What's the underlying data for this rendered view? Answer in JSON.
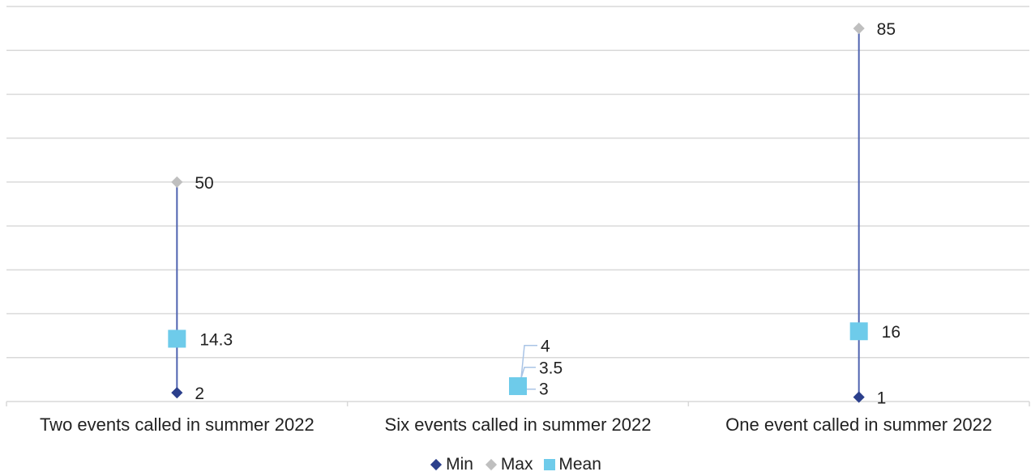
{
  "chart_data": {
    "type": "scatter",
    "categories": [
      "Two events called in summer 2022",
      "Six events called in summer 2022",
      "One event called in summer 2022"
    ],
    "series": [
      {
        "name": "Min",
        "values": [
          2,
          3,
          1
        ]
      },
      {
        "name": "Max",
        "values": [
          50,
          4,
          85
        ]
      },
      {
        "name": "Mean",
        "values": [
          14.3,
          3.5,
          16
        ]
      }
    ],
    "data_labels": {
      "Min": [
        "2",
        "3",
        "1"
      ],
      "Max": [
        "50",
        "4",
        "85"
      ],
      "Mean": [
        "14.3",
        "3.5",
        "16"
      ]
    },
    "ylim": [
      0,
      90
    ],
    "y_gridline_step": 10,
    "y_axis_labels_shown": false,
    "grid": true,
    "legend_position": "bottom",
    "colors": {
      "Min": "#2b3f8c",
      "Max": "#bfbfbf",
      "Mean": "#6ecbea",
      "range_line": "#4f63b0",
      "grid": "#d9d9d9",
      "leader": "#a9c4e6"
    }
  },
  "legend": {
    "items": [
      {
        "label": "Min",
        "symbol": "diamond",
        "color": "#2b3f8c"
      },
      {
        "label": "Max",
        "symbol": "diamond",
        "color": "#bfbfbf"
      },
      {
        "label": "Mean",
        "symbol": "square",
        "color": "#6ecbea"
      }
    ]
  }
}
